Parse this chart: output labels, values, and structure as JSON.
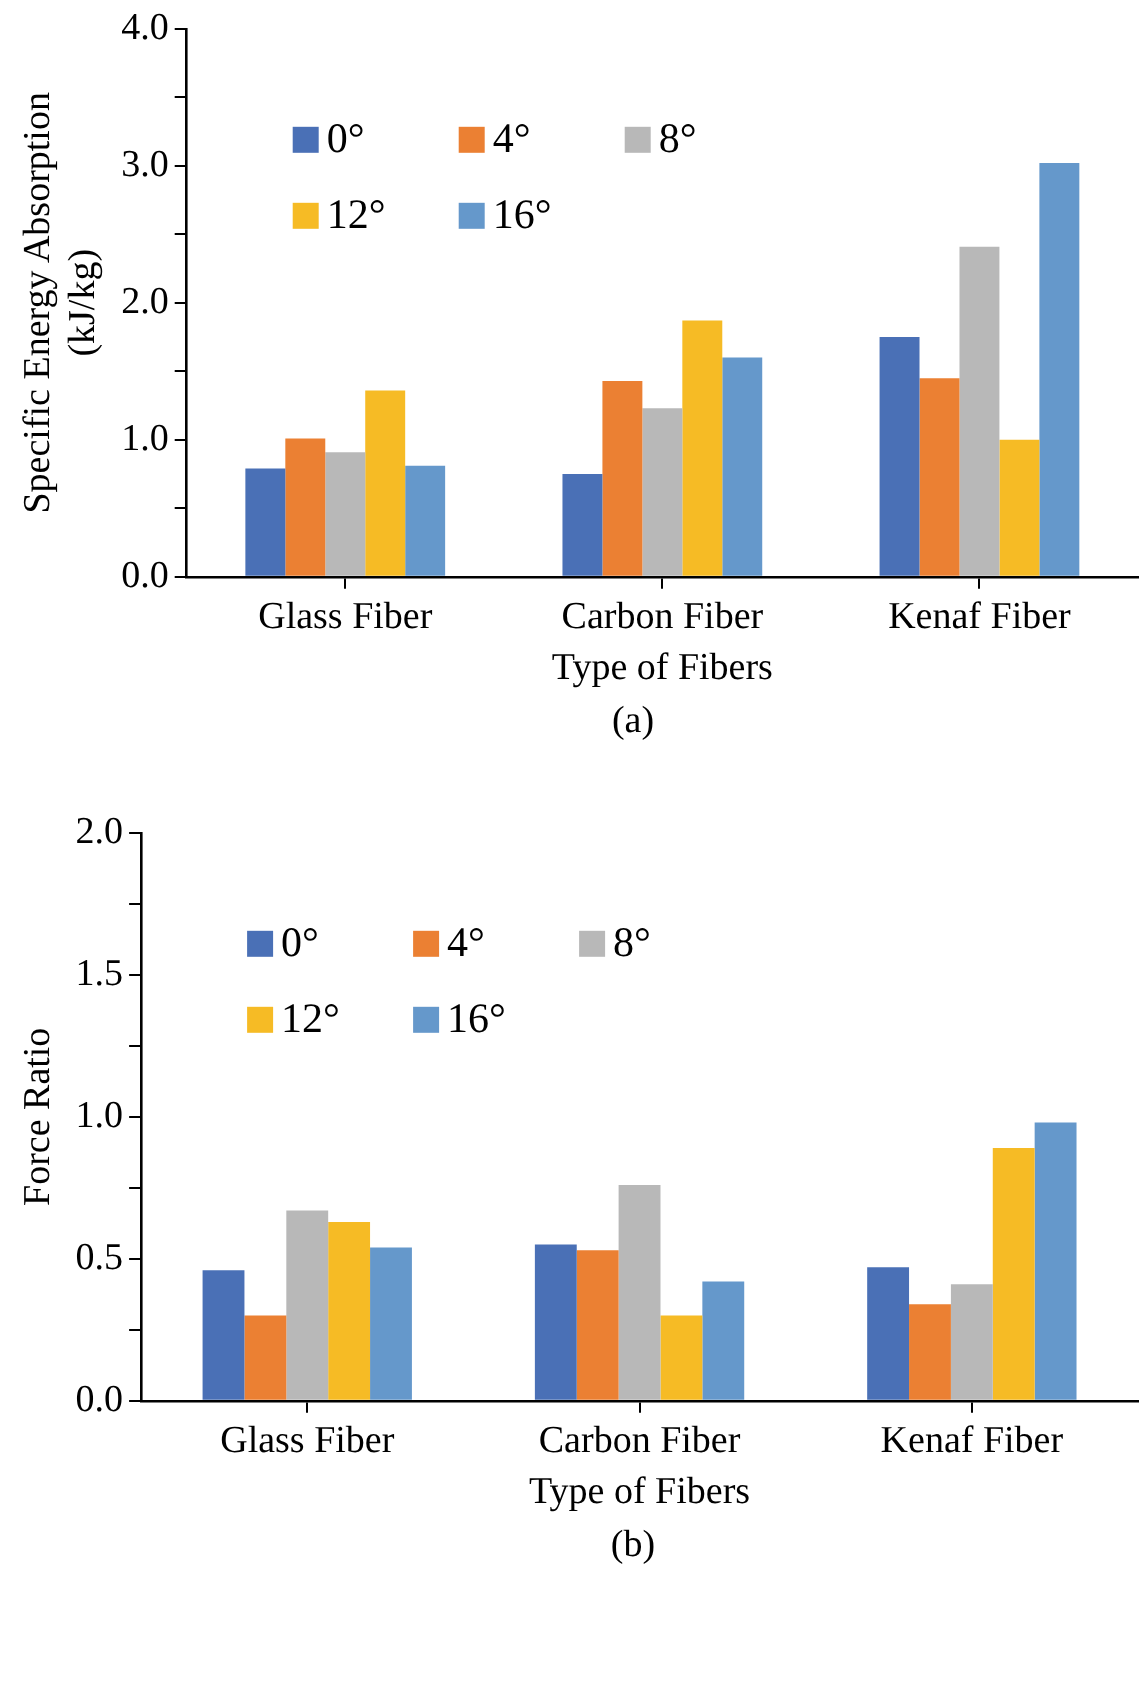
{
  "chart_data": [
    {
      "type": "bar",
      "xlabel": "Type of Fibers",
      "ylabel": "Specific Energy Absorption\n(kJ/kg)",
      "categories": [
        "Glass Fiber",
        "Carbon Fiber",
        "Kenaf Fiber"
      ],
      "series": [
        {
          "name": "0°",
          "color": "#4a70b6",
          "values": [
            0.79,
            0.75,
            1.75
          ]
        },
        {
          "name": "4°",
          "color": "#eb8033",
          "values": [
            1.01,
            1.43,
            1.45
          ]
        },
        {
          "name": "8°",
          "color": "#b8b8b8",
          "values": [
            0.91,
            1.23,
            2.41
          ]
        },
        {
          "name": "12°",
          "color": "#f6bb25",
          "values": [
            1.36,
            1.87,
            1.0
          ]
        },
        {
          "name": "16°",
          "color": "#6598cb",
          "values": [
            0.81,
            1.6,
            3.02
          ]
        }
      ],
      "ylim": [
        0,
        4
      ],
      "yticks": [
        {
          "value": 0,
          "label": "0.0"
        },
        {
          "value": 0.5,
          "label": null
        },
        {
          "value": 1,
          "label": "1.0"
        },
        {
          "value": 1.5,
          "label": null
        },
        {
          "value": 2,
          "label": "2.0"
        },
        {
          "value": 2.5,
          "label": null
        },
        {
          "value": 3,
          "label": "3.0"
        },
        {
          "value": 3.5,
          "label": null
        },
        {
          "value": 4,
          "label": "4.0"
        }
      ],
      "grid": false,
      "legend": "top left",
      "annotations": [
        "(a)"
      ]
    },
    {
      "type": "bar",
      "xlabel": "Type of Fibers",
      "ylabel": "Force Ratio",
      "categories": [
        "Glass Fiber",
        "Carbon Fiber",
        "Kenaf Fiber"
      ],
      "series": [
        {
          "name": "0°",
          "color": "#4a70b6",
          "values": [
            0.46,
            0.55,
            0.47
          ]
        },
        {
          "name": "4°",
          "color": "#eb8033",
          "values": [
            0.3,
            0.53,
            0.34
          ]
        },
        {
          "name": "8°",
          "color": "#b8b8b8",
          "values": [
            0.67,
            0.76,
            0.41
          ]
        },
        {
          "name": "12°",
          "color": "#f6bb25",
          "values": [
            0.63,
            0.3,
            0.89
          ]
        },
        {
          "name": "16°",
          "color": "#6598cb",
          "values": [
            0.54,
            0.42,
            0.98
          ]
        }
      ],
      "ylim": [
        0,
        2
      ],
      "yticks": [
        {
          "value": 0,
          "label": "0.0"
        },
        {
          "value": 0.25,
          "label": null
        },
        {
          "value": 0.5,
          "label": "0.5"
        },
        {
          "value": 0.75,
          "label": null
        },
        {
          "value": 1,
          "label": "1.0"
        },
        {
          "value": 1.25,
          "label": null
        },
        {
          "value": 1.5,
          "label": "1.5"
        },
        {
          "value": 1.75,
          "label": null
        },
        {
          "value": 2,
          "label": "2.0"
        }
      ],
      "grid": false,
      "legend": "top left",
      "annotations": [
        "(b)"
      ]
    }
  ]
}
